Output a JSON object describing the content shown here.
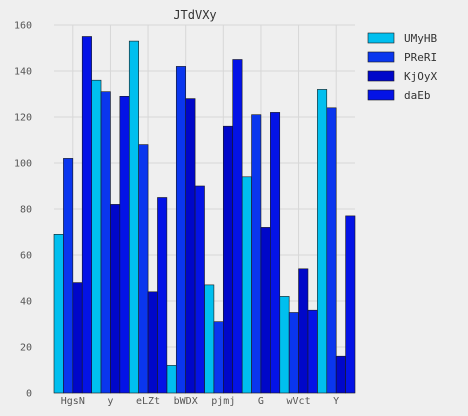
{
  "chart_data": {
    "type": "bar",
    "title": "JTdVXy",
    "xlabel": "",
    "ylabel": "",
    "categories": [
      "HgsN",
      "y",
      "eLZt",
      "bWDX",
      "pjmj",
      "G",
      "wVct",
      "Y"
    ],
    "ylim": [
      0,
      160
    ],
    "yticks": [
      "0",
      "20",
      "40",
      "60",
      "80",
      "100",
      "120",
      "140",
      "160"
    ],
    "grid": true,
    "legend_position": "top-right",
    "series": [
      {
        "name": "UMyHB",
        "color": "#00bfef",
        "values": [
          69,
          136,
          153,
          12,
          47,
          94,
          42,
          132
        ]
      },
      {
        "name": "PReRI",
        "color": "#0a36ee",
        "values": [
          102,
          131,
          108,
          142,
          31,
          121,
          35,
          124
        ]
      },
      {
        "name": "KjOyX",
        "color": "#0007c9",
        "values": [
          48,
          82,
          44,
          128,
          116,
          72,
          54,
          16
        ]
      },
      {
        "name": "daEb",
        "color": "#0413e6",
        "values": [
          155,
          129,
          85,
          90,
          145,
          122,
          36,
          77
        ]
      }
    ]
  }
}
